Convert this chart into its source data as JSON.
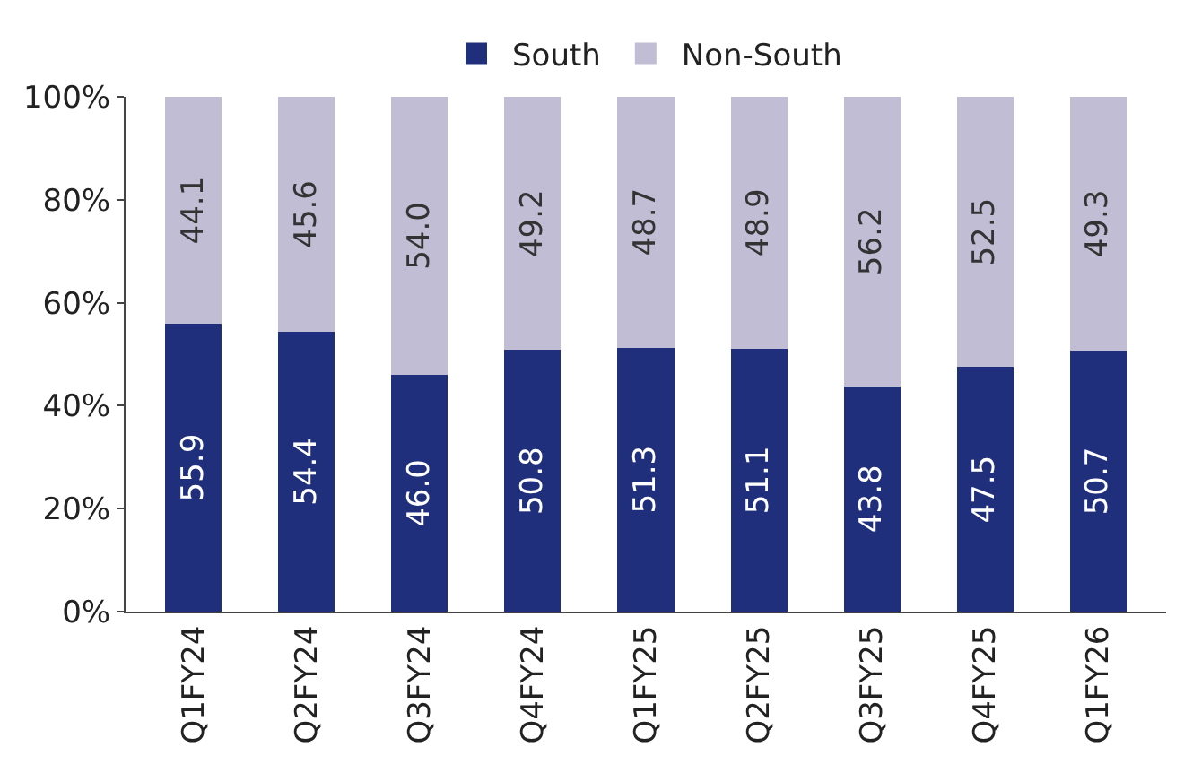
{
  "chart_data": {
    "type": "bar",
    "stacked": true,
    "categories": [
      "Q1FY24",
      "Q2FY24",
      "Q3FY24",
      "Q4FY24",
      "Q1FY25",
      "Q2FY25",
      "Q3FY25",
      "Q4FY25",
      "Q1FY26"
    ],
    "series": [
      {
        "name": "South",
        "color": "#1f2f7b",
        "values": [
          55.9,
          54.4,
          46.0,
          50.8,
          51.3,
          51.1,
          43.8,
          47.5,
          50.7
        ],
        "value_labels": [
          "55.9",
          "54.4",
          "46.0",
          "50.8",
          "51.3",
          "51.1",
          "43.8",
          "47.5",
          "50.7"
        ]
      },
      {
        "name": "Non-South",
        "color": "#c0bdd4",
        "values": [
          44.1,
          45.6,
          54.0,
          49.2,
          48.7,
          48.9,
          56.2,
          52.5,
          49.3
        ],
        "value_labels": [
          "44.1",
          "45.6",
          "54.0",
          "49.2",
          "48.7",
          "48.9",
          "56.2",
          "52.5",
          "49.3"
        ]
      }
    ],
    "ylim": [
      0,
      100
    ],
    "yticks": [
      {
        "value": 0,
        "label": "0%"
      },
      {
        "value": 20,
        "label": "20%"
      },
      {
        "value": 40,
        "label": "40%"
      },
      {
        "value": 60,
        "label": "60%"
      },
      {
        "value": 80,
        "label": "80%"
      },
      {
        "value": 100,
        "label": "100%"
      }
    ],
    "legend": "top"
  }
}
